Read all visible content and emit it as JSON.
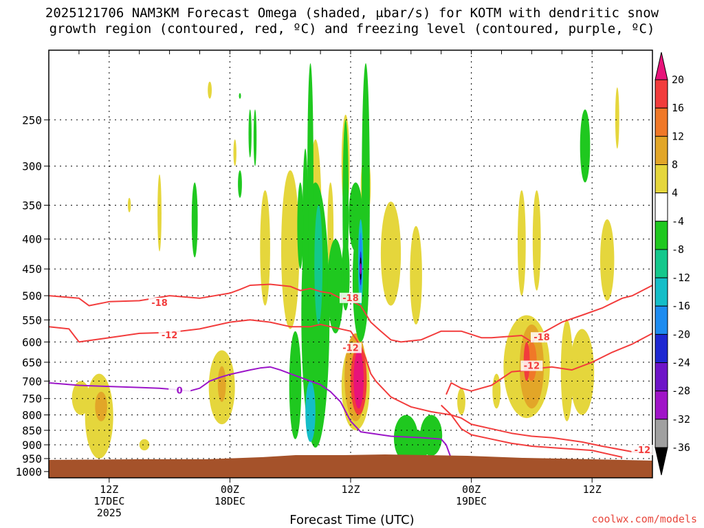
{
  "chart_data": {
    "type": "heatmap",
    "title_line1": "2025121706 NAM3KM Forecast Omega (shaded, μbar/s) for KOTM with dendritic snow",
    "title_line2": "growth region (contoured, red, ºC) and freezing level (contoured, purple, ºC)",
    "xlabel": "Forecast Time (UTC)",
    "ylabel": "",
    "credit": "coolwx.com/models",
    "y_axis": {
      "scale": "pressure (hPa), log",
      "range": [
        1025,
        190
      ],
      "ticks": [
        "250",
        "300",
        "350",
        "400",
        "450",
        "500",
        "550",
        "600",
        "650",
        "700",
        "750",
        "800",
        "850",
        "900",
        "950",
        "1000"
      ]
    },
    "x_axis": {
      "range_hours": [
        0,
        60
      ],
      "ticks": [
        {
          "hour": 6,
          "line1": "12Z",
          "line2": "17DEC",
          "line3": "2025"
        },
        {
          "hour": 18,
          "line1": "00Z",
          "line2": "18DEC",
          "line3": ""
        },
        {
          "hour": 30,
          "line1": "12Z",
          "line2": "",
          "line3": ""
        },
        {
          "hour": 42,
          "line1": "00Z",
          "line2": "19DEC",
          "line3": ""
        },
        {
          "hour": 54,
          "line1": "12Z",
          "line2": "",
          "line3": ""
        }
      ]
    },
    "colorbar": {
      "labels": [
        "20",
        "16",
        "12",
        "8",
        "4",
        "-4",
        "-8",
        "-12",
        "-16",
        "-20",
        "-24",
        "-28",
        "-32",
        "-36"
      ],
      "colors": [
        "#e8137a",
        "#f23c3c",
        "#f07828",
        "#e2a628",
        "#e5d63c",
        "#ffffff",
        "#1fc81f",
        "#14c88c",
        "#14bec8",
        "#1e8cf0",
        "#1e28d2",
        "#6e14c8",
        "#a014c8",
        "#a0a0a0",
        "#000000"
      ]
    },
    "contours": [
      {
        "name": "-18C",
        "label": "-18",
        "color": "#f23c3c",
        "points": [
          [
            0,
            500
          ],
          [
            3,
            505
          ],
          [
            4,
            520
          ],
          [
            6,
            512
          ],
          [
            9,
            510
          ],
          [
            12,
            500
          ],
          [
            15,
            505
          ],
          [
            18,
            495
          ],
          [
            19,
            488
          ],
          [
            20,
            480
          ],
          [
            22,
            478
          ],
          [
            24,
            482
          ],
          [
            25,
            490
          ],
          [
            26,
            486
          ],
          [
            27,
            492
          ],
          [
            28,
            495
          ],
          [
            29,
            505
          ],
          [
            30,
            510
          ],
          [
            31,
            520
          ],
          [
            32,
            555
          ],
          [
            33,
            575
          ],
          [
            34,
            595
          ],
          [
            35,
            600
          ],
          [
            37,
            595
          ],
          [
            39,
            575
          ],
          [
            41,
            575
          ],
          [
            43,
            590
          ],
          [
            44,
            590
          ],
          [
            47,
            585
          ],
          [
            48,
            600
          ],
          [
            49,
            580
          ],
          [
            51,
            555
          ],
          [
            53,
            540
          ],
          [
            55,
            525
          ],
          [
            57,
            505
          ],
          [
            58,
            500
          ],
          [
            60,
            480
          ]
        ],
        "label_positions": [
          [
            11,
            515
          ],
          [
            30,
            505
          ],
          [
            49,
            590
          ]
        ]
      },
      {
        "name": "-12C",
        "label": "-12",
        "color": "#f23c3c",
        "points": [
          [
            0,
            565
          ],
          [
            2,
            570
          ],
          [
            3,
            600
          ],
          [
            6,
            590
          ],
          [
            9,
            580
          ],
          [
            12,
            578
          ],
          [
            15,
            570
          ],
          [
            18,
            555
          ],
          [
            20,
            550
          ],
          [
            22,
            555
          ],
          [
            24,
            565
          ],
          [
            26,
            565
          ],
          [
            27,
            560
          ],
          [
            28,
            565
          ],
          [
            30,
            575
          ],
          [
            31,
            610
          ],
          [
            31.5,
            640
          ],
          [
            32,
            680
          ],
          [
            32.5,
            700
          ],
          [
            33,
            715
          ],
          [
            34,
            745
          ],
          [
            35,
            760
          ],
          [
            36,
            775
          ],
          [
            38,
            790
          ],
          [
            40,
            800
          ],
          [
            41,
            810
          ],
          [
            42,
            830
          ],
          [
            44,
            845
          ],
          [
            46,
            860
          ],
          [
            48,
            870
          ],
          [
            50,
            875
          ],
          [
            53,
            890
          ],
          [
            55,
            905
          ],
          [
            58,
            925
          ],
          [
            60,
            930
          ]
        ],
        "label_positions": [
          [
            12,
            585
          ],
          [
            30,
            615
          ],
          [
            59,
            920
          ]
        ]
      },
      {
        "name": "-12C-b",
        "label": "-12",
        "color": "#f23c3c",
        "points": [
          [
            39.5,
            738
          ],
          [
            40,
            705
          ],
          [
            41,
            720
          ],
          [
            42,
            728
          ],
          [
            44,
            712
          ],
          [
            46,
            675
          ],
          [
            48,
            670
          ],
          [
            49,
            665
          ],
          [
            50,
            662
          ],
          [
            52,
            670
          ],
          [
            54,
            650
          ],
          [
            56,
            625
          ],
          [
            58,
            605
          ],
          [
            60,
            580
          ]
        ],
        "label_positions": [
          [
            48,
            660
          ]
        ]
      },
      {
        "name": "-12C-c",
        "label": "",
        "color": "#f23c3c",
        "points": [
          [
            39,
            770
          ],
          [
            40,
            800
          ],
          [
            41,
            845
          ],
          [
            42,
            865
          ],
          [
            44,
            880
          ],
          [
            46,
            895
          ],
          [
            48,
            905
          ],
          [
            50,
            910
          ],
          [
            52,
            915
          ],
          [
            54,
            920
          ],
          [
            57,
            945
          ]
        ],
        "label_positions": []
      },
      {
        "name": "0C",
        "label": "0",
        "color": "#9b14c8",
        "points": [
          [
            0,
            705
          ],
          [
            3,
            712
          ],
          [
            6,
            715
          ],
          [
            9,
            718
          ],
          [
            11,
            720
          ],
          [
            13,
            725
          ],
          [
            14,
            728
          ],
          [
            15,
            720
          ],
          [
            16,
            700
          ],
          [
            17,
            690
          ],
          [
            18,
            682
          ],
          [
            20,
            670
          ],
          [
            21,
            665
          ],
          [
            22,
            662
          ],
          [
            23,
            670
          ],
          [
            24,
            680
          ],
          [
            25,
            690
          ],
          [
            26,
            700
          ],
          [
            27,
            710
          ],
          [
            28,
            730
          ],
          [
            29,
            760
          ],
          [
            30,
            820
          ],
          [
            31,
            855
          ],
          [
            32,
            860
          ],
          [
            34,
            870
          ],
          [
            37,
            875
          ],
          [
            39,
            880
          ],
          [
            39.5,
            900
          ],
          [
            40,
            950
          ]
        ],
        "label_positions": [
          [
            13,
            728
          ]
        ]
      }
    ]
  }
}
